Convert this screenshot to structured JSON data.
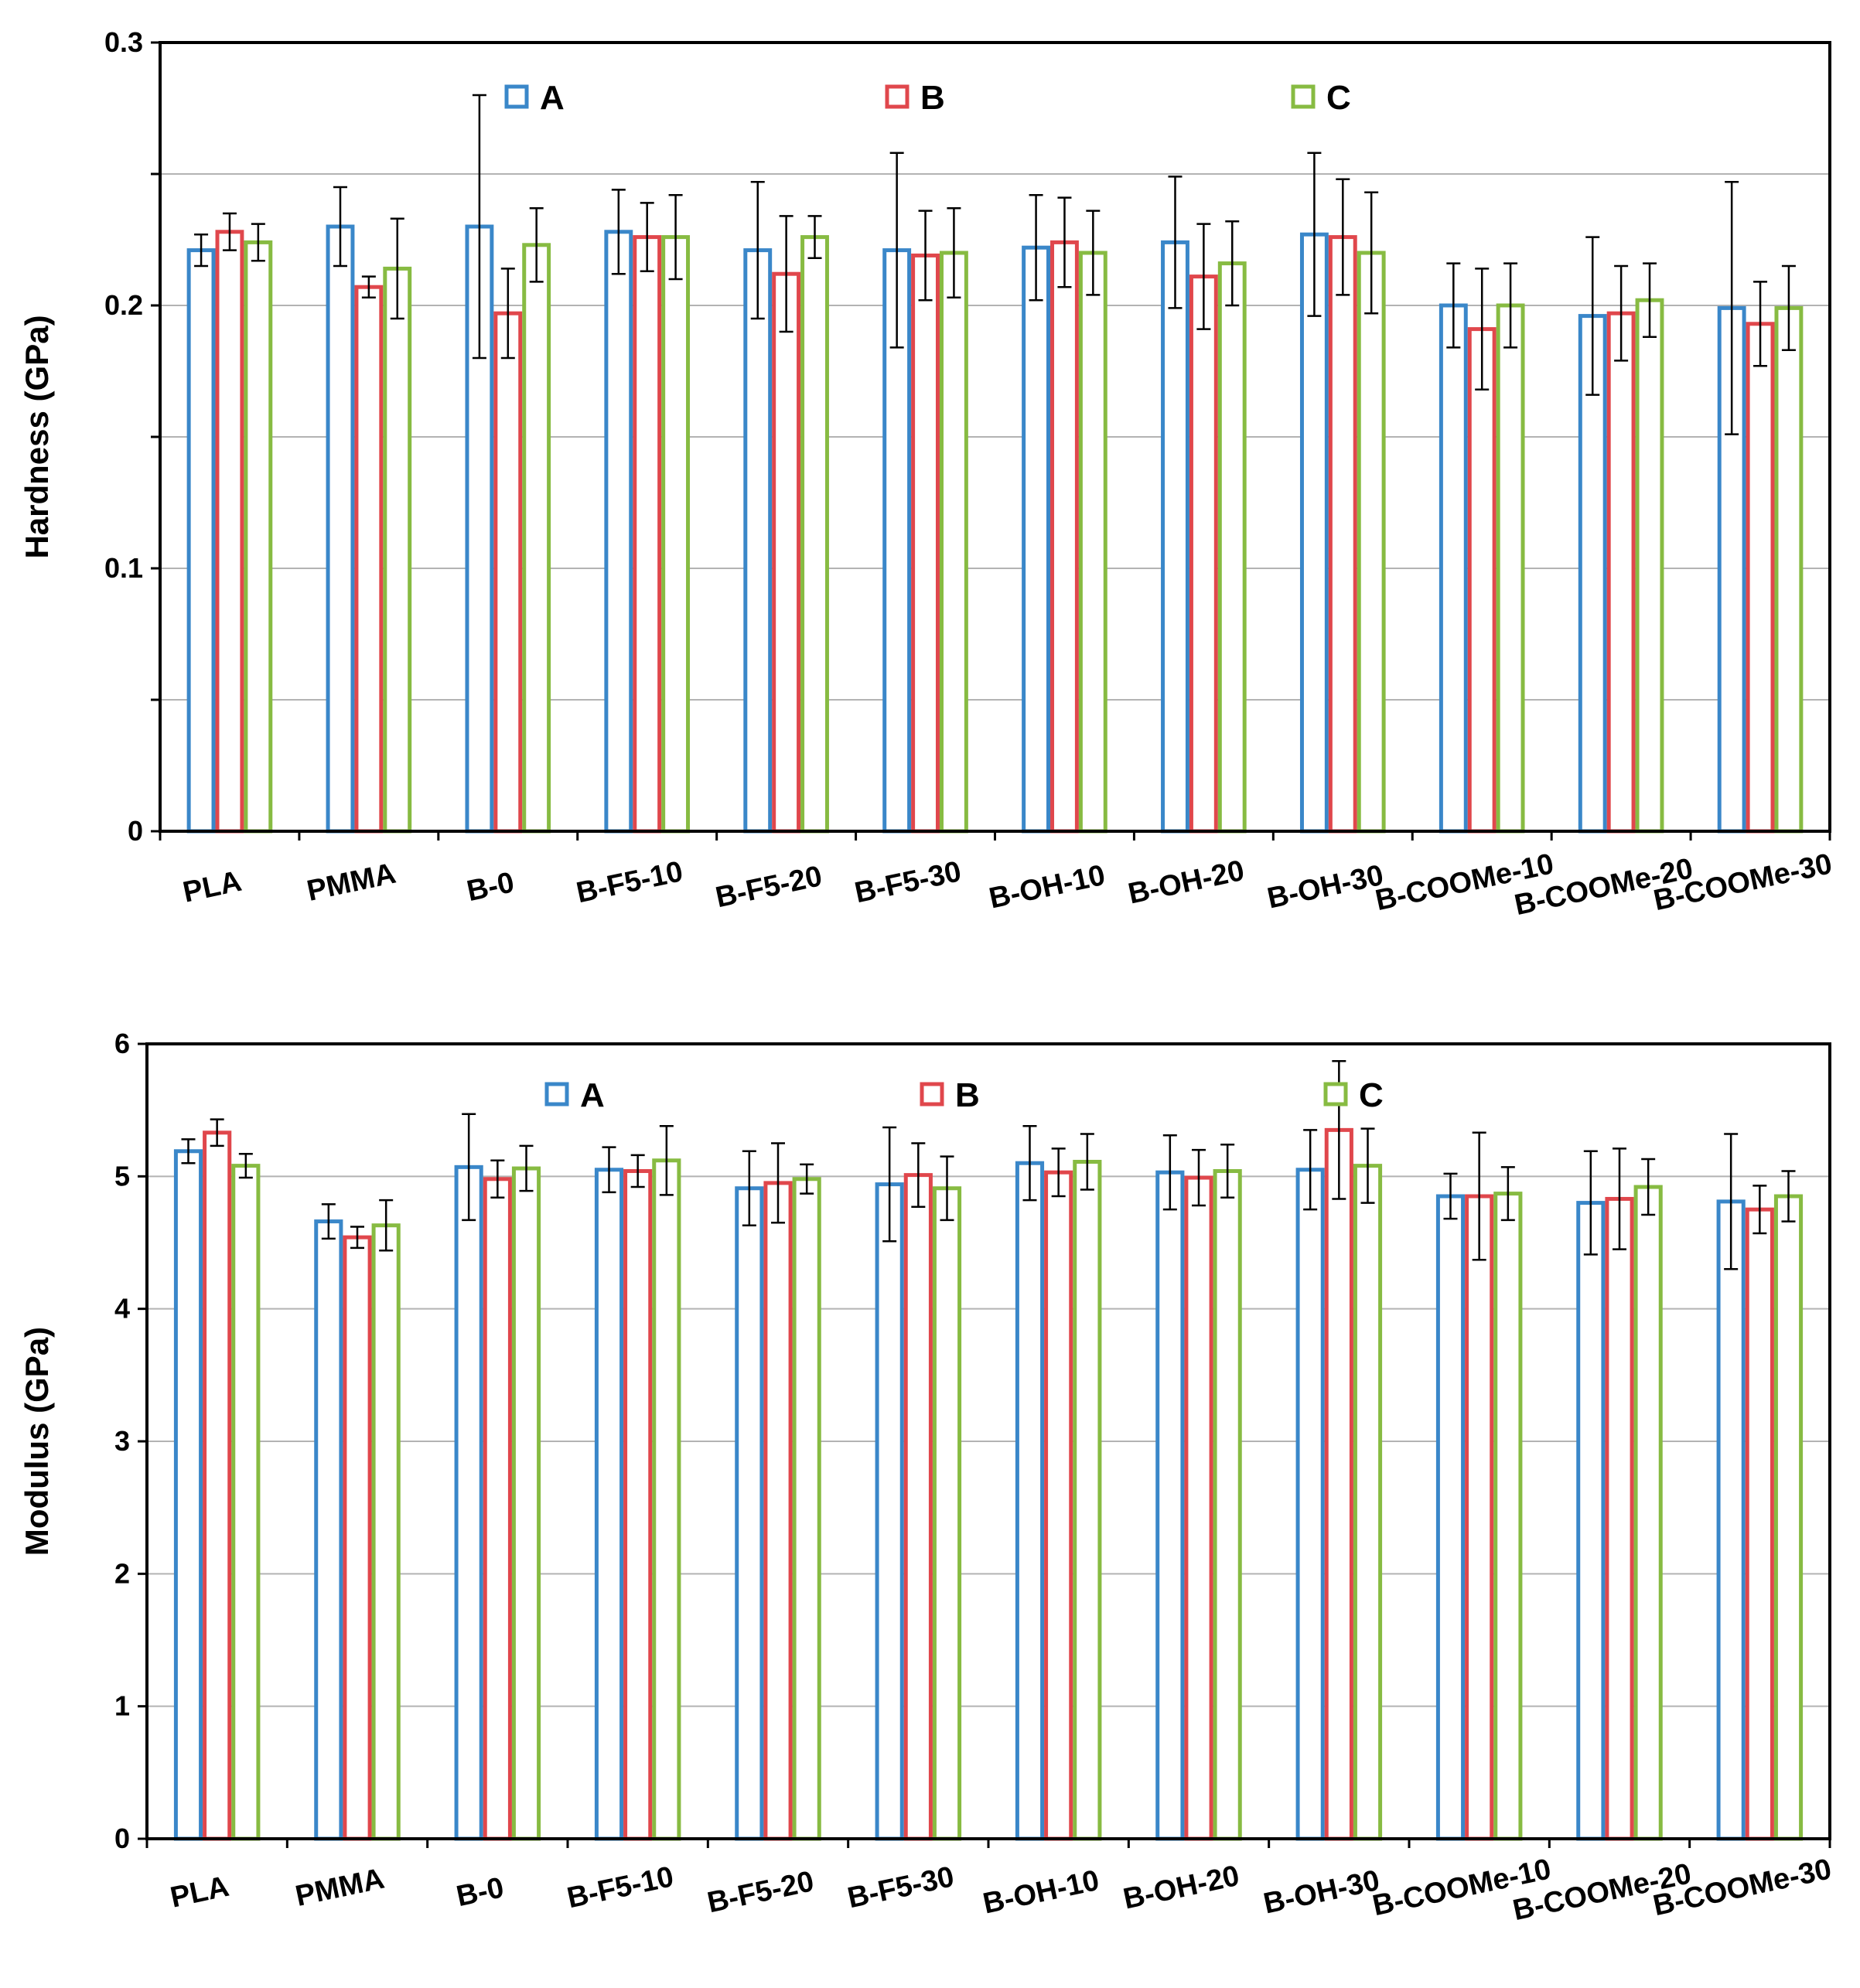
{
  "series_colors": {
    "A": "#3a87c9",
    "B": "#e0474c",
    "C": "#87bb42"
  },
  "chart_data": [
    {
      "type": "bar",
      "ylabel": "Hardness (GPa)",
      "ylim": [
        0,
        0.3
      ],
      "yticks": [
        0,
        0.05,
        0.1,
        0.15,
        0.2,
        0.25,
        0.3
      ],
      "ytick_labels": [
        "0",
        "",
        "0.1",
        "",
        "0.2",
        "",
        "0.3"
      ],
      "grid": true,
      "legend_position": "top",
      "categories": [
        "PLA",
        "PMMA",
        "B-0",
        "B-F5-10",
        "B-F5-20",
        "B-F5-30",
        "B-OH-10",
        "B-OH-20",
        "B-OH-30",
        "B-COOMe-10",
        "B-COOMe-20",
        "B-COOMe-30"
      ],
      "series": [
        {
          "name": "A",
          "color": "#3a87c9",
          "values": [
            0.221,
            0.23,
            0.23,
            0.228,
            0.221,
            0.221,
            0.222,
            0.224,
            0.227,
            0.2,
            0.196,
            0.199
          ],
          "errors": [
            0.006,
            0.015,
            0.05,
            0.016,
            0.026,
            0.037,
            0.02,
            0.025,
            0.031,
            0.016,
            0.03,
            0.048
          ]
        },
        {
          "name": "B",
          "color": "#e0474c",
          "values": [
            0.228,
            0.207,
            0.197,
            0.226,
            0.212,
            0.219,
            0.224,
            0.211,
            0.226,
            0.191,
            0.197,
            0.193
          ],
          "errors": [
            0.007,
            0.004,
            0.017,
            0.013,
            0.022,
            0.017,
            0.017,
            0.02,
            0.022,
            0.023,
            0.018,
            0.016
          ]
        },
        {
          "name": "C",
          "color": "#87bb42",
          "values": [
            0.224,
            0.214,
            0.223,
            0.226,
            0.226,
            0.22,
            0.22,
            0.216,
            0.22,
            0.2,
            0.202,
            0.199
          ],
          "errors": [
            0.007,
            0.019,
            0.014,
            0.016,
            0.008,
            0.017,
            0.016,
            0.016,
            0.023,
            0.016,
            0.014,
            0.016
          ]
        }
      ]
    },
    {
      "type": "bar",
      "ylabel": "Modulus (GPa)",
      "ylim": [
        0,
        6
      ],
      "yticks": [
        0,
        1,
        2,
        3,
        4,
        5,
        6
      ],
      "ytick_labels": [
        "0",
        "1",
        "2",
        "3",
        "4",
        "5",
        "6"
      ],
      "grid": true,
      "legend_position": "top",
      "categories": [
        "PLA",
        "PMMA",
        "B-0",
        "B-F5-10",
        "B-F5-20",
        "B-F5-30",
        "B-OH-10",
        "B-OH-20",
        "B-OH-30",
        "B-COOMe-10",
        "B-COOMe-20",
        "B-COOMe-30"
      ],
      "series": [
        {
          "name": "A",
          "color": "#3a87c9",
          "values": [
            5.19,
            4.66,
            5.07,
            5.05,
            4.91,
            4.94,
            5.1,
            5.03,
            5.05,
            4.85,
            4.8,
            4.81
          ],
          "errors": [
            0.09,
            0.13,
            0.4,
            0.17,
            0.28,
            0.43,
            0.28,
            0.28,
            0.3,
            0.17,
            0.39,
            0.51
          ]
        },
        {
          "name": "B",
          "color": "#e0474c",
          "values": [
            5.33,
            4.54,
            4.98,
            5.04,
            4.95,
            5.01,
            5.03,
            4.99,
            5.35,
            4.85,
            4.83,
            4.75
          ],
          "errors": [
            0.1,
            0.08,
            0.14,
            0.12,
            0.3,
            0.24,
            0.18,
            0.21,
            0.52,
            0.48,
            0.38,
            0.18
          ]
        },
        {
          "name": "C",
          "color": "#87bb42",
          "values": [
            5.08,
            4.63,
            5.06,
            5.12,
            4.98,
            4.91,
            5.11,
            5.04,
            5.08,
            4.87,
            4.92,
            4.85
          ],
          "errors": [
            0.09,
            0.19,
            0.17,
            0.26,
            0.11,
            0.24,
            0.21,
            0.2,
            0.28,
            0.2,
            0.21,
            0.19
          ]
        }
      ]
    }
  ]
}
